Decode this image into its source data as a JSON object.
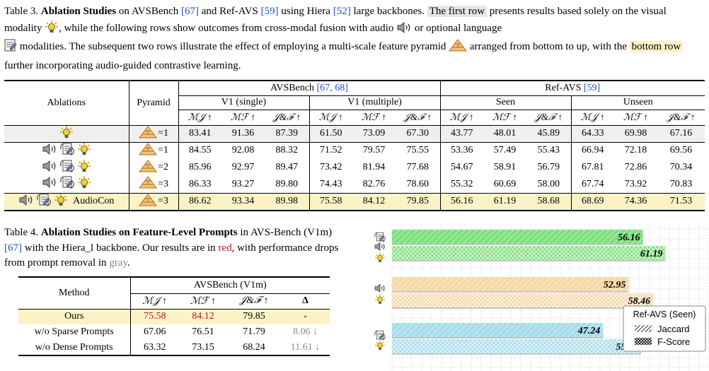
{
  "table3": {
    "caption": {
      "label": "Table 3.",
      "bold": "Ablation Studies",
      "t1": " on AVSBench ",
      "cite_avsbench": "[67]",
      "t2": " and Ref-AVS ",
      "cite_refavs": "[59]",
      "t3": " using Hiera ",
      "cite_hiera": "[52]",
      "t4": " large backbones. ",
      "first_row": "The first row",
      "t5": " presents results based solely on the visual modality ",
      "t6": ", while the following rows show outcomes from cross-modal fusion with audio ",
      "t7": " or optional language ",
      "t8": " modalities. The subsequent two rows illustrate the effect of employing a multi-scale feature pyramid ",
      "t9": " arranged from bottom to up, with the ",
      "bottom_row": "bottom row",
      "t10": " further incorporating audio-guided contrastive learning."
    },
    "headers": {
      "ablations": "Ablations",
      "pyramid": "Pyramid",
      "avsbench": "AVSBench ",
      "avsbench_cites": "[67, 68]",
      "refavs": "Ref-AVS ",
      "refavs_cite": "[59]",
      "v1s": "V1 (single)",
      "v1m": "V1 (multiple)",
      "seen": "Seen",
      "unseen": "Unseen",
      "mj": "ℳ𝒥 ↑",
      "mf": "ℳℱ ↑",
      "jf": "𝒥&ℱ ↑"
    },
    "rows": [
      {
        "audio": false,
        "lang": false,
        "visual": true,
        "text": "",
        "pyramid": "=1",
        "values": [
          "83.41",
          "91.36",
          "87.39",
          "61.50",
          "73.09",
          "67.30",
          "43.77",
          "48.01",
          "45.89",
          "64.33",
          "69.98",
          "67.16"
        ]
      },
      {
        "audio": true,
        "lang": true,
        "visual": true,
        "text": "",
        "pyramid": "=1",
        "values": [
          "84.55",
          "92.08",
          "88.32",
          "71.52",
          "79.57",
          "75.55",
          "53.36",
          "57.49",
          "55.43",
          "66.94",
          "72.18",
          "69.56"
        ]
      },
      {
        "audio": true,
        "lang": true,
        "visual": true,
        "text": "",
        "pyramid": "=2",
        "values": [
          "85.96",
          "92.97",
          "89.47",
          "73.42",
          "81.94",
          "77.68",
          "54.67",
          "58.91",
          "56.79",
          "67.81",
          "72.86",
          "70.34"
        ]
      },
      {
        "audio": true,
        "lang": true,
        "visual": true,
        "text": "",
        "pyramid": "=3",
        "values": [
          "86.33",
          "93.27",
          "89.80",
          "74.43",
          "82.76",
          "78.60",
          "55.32",
          "60.69",
          "58.00",
          "67.74",
          "73.92",
          "70.83"
        ]
      },
      {
        "audio": true,
        "lang": true,
        "visual": true,
        "text": "AudioCon",
        "pyramid": "=3",
        "values": [
          "86.62",
          "93.34",
          "89.98",
          "75.58",
          "84.12",
          "79.85",
          "56.16",
          "61.19",
          "58.68",
          "68.69",
          "74.36",
          "71.53"
        ]
      }
    ]
  },
  "table4": {
    "caption": {
      "label": "Table 4.",
      "bold": "Ablation Studies on Feature-Level Prompts",
      "t1": " in AVS-Bench (V1m) ",
      "cite": "[67]",
      "t2": " with the Hiera_l backbone. Our results are in ",
      "red": "red",
      "t3": ", with performance drops from prompt removal in ",
      "gray": "gray",
      "t4": "."
    },
    "headers": {
      "method": "Method",
      "group": "AVSBench (V1m)",
      "mj": "ℳ𝒥 ↑",
      "mf": "ℳℱ ↑",
      "jf": "𝒥&ℱ ↑",
      "delta": "Δ"
    },
    "rows": [
      {
        "method": "Ours",
        "mj": "75.58",
        "mf": "84.12",
        "jf": "79.85",
        "delta": "-"
      },
      {
        "method": "w/o Sparse Prompts",
        "mj": "67.06",
        "mf": "76.51",
        "jf": "71.79",
        "delta": "8.06 ↓"
      },
      {
        "method": "w/o Dense Prompts",
        "mj": "63.32",
        "mf": "73.15",
        "jf": "68.24",
        "delta": "11.61 ↓"
      }
    ]
  },
  "chart_data": {
    "type": "bar",
    "orientation": "horizontal",
    "xlim": [
      0,
      70
    ],
    "groups": [
      {
        "modalities": [
          "language",
          "audio",
          "visual"
        ],
        "jaccard": 56.16,
        "fscore": 61.19,
        "color": "#7ee07e"
      },
      {
        "modalities": [
          "audio",
          "visual"
        ],
        "jaccard": 52.95,
        "fscore": 58.46,
        "color": "#f7d7a8"
      },
      {
        "modalities": [
          "language",
          "visual"
        ],
        "jaccard": 47.24,
        "fscore": 55.73,
        "color": "#a6dcea"
      }
    ],
    "legend": {
      "title": "Ref-AVS (Seen)",
      "items": [
        "Jaccard",
        "F-Score"
      ],
      "position": "bottom-right"
    },
    "grid": true
  }
}
